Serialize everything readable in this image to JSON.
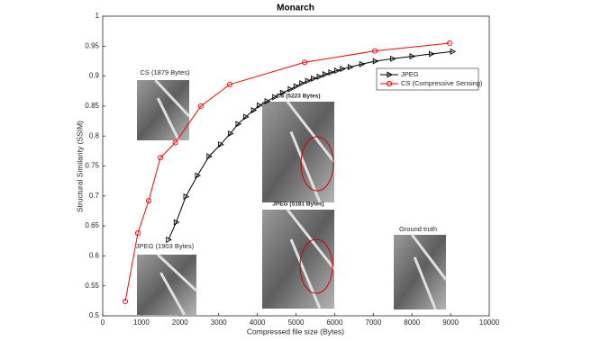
{
  "chart_data": {
    "type": "line",
    "title": "Monarch",
    "x_label": "Compressed file size (Bytes)",
    "y_label": "Structural Similarity (SSIM)",
    "xlim": [
      0,
      10000
    ],
    "xticks": [
      0,
      1000,
      2000,
      3000,
      4000,
      5000,
      6000,
      7000,
      8000,
      9000,
      10000
    ],
    "ylim": [
      0.5,
      1
    ],
    "yticks": [
      0.5,
      0.55,
      0.6,
      0.65,
      0.7,
      0.75,
      0.8,
      0.85,
      0.9,
      0.95,
      1
    ],
    "legend": "upper-right",
    "series": [
      {
        "name": "JPEG",
        "color": "#000000",
        "marker": "triangle-right",
        "x": [
          1700,
          1900,
          2150,
          2450,
          2750,
          3050,
          3300,
          3500,
          3700,
          3900,
          4050,
          4250,
          4450,
          4650,
          4850,
          5000,
          5150,
          5300,
          5450,
          5600,
          5750,
          5900,
          6050,
          6200,
          6400,
          6700,
          7050,
          7500,
          8000,
          8500,
          9050
        ],
        "values": [
          0.627,
          0.656,
          0.699,
          0.734,
          0.766,
          0.786,
          0.804,
          0.82,
          0.832,
          0.843,
          0.851,
          0.858,
          0.865,
          0.872,
          0.878,
          0.883,
          0.888,
          0.892,
          0.896,
          0.899,
          0.903,
          0.906,
          0.909,
          0.912,
          0.915,
          0.92,
          0.925,
          0.929,
          0.933,
          0.937,
          0.941
        ]
      },
      {
        "name": "CS (Compressive Sensing)",
        "color": "#ff0000",
        "marker": "circle",
        "x": [
          583,
          909,
          1189,
          1492,
          1879,
          2540,
          3287,
          5223,
          7040,
          8974
        ],
        "values": [
          0.524,
          0.638,
          0.692,
          0.764,
          0.789,
          0.85,
          0.886,
          0.923,
          0.942,
          0.955
        ]
      }
    ],
    "annotations": [
      {
        "text": "CS (1879 Bytes)"
      },
      {
        "text": "CS (5223 Bytes)"
      },
      {
        "text": "JPEG (5181 Bytes)"
      },
      {
        "text": "JPEG (1903 Bytes)"
      },
      {
        "text": "Ground truth"
      }
    ]
  }
}
